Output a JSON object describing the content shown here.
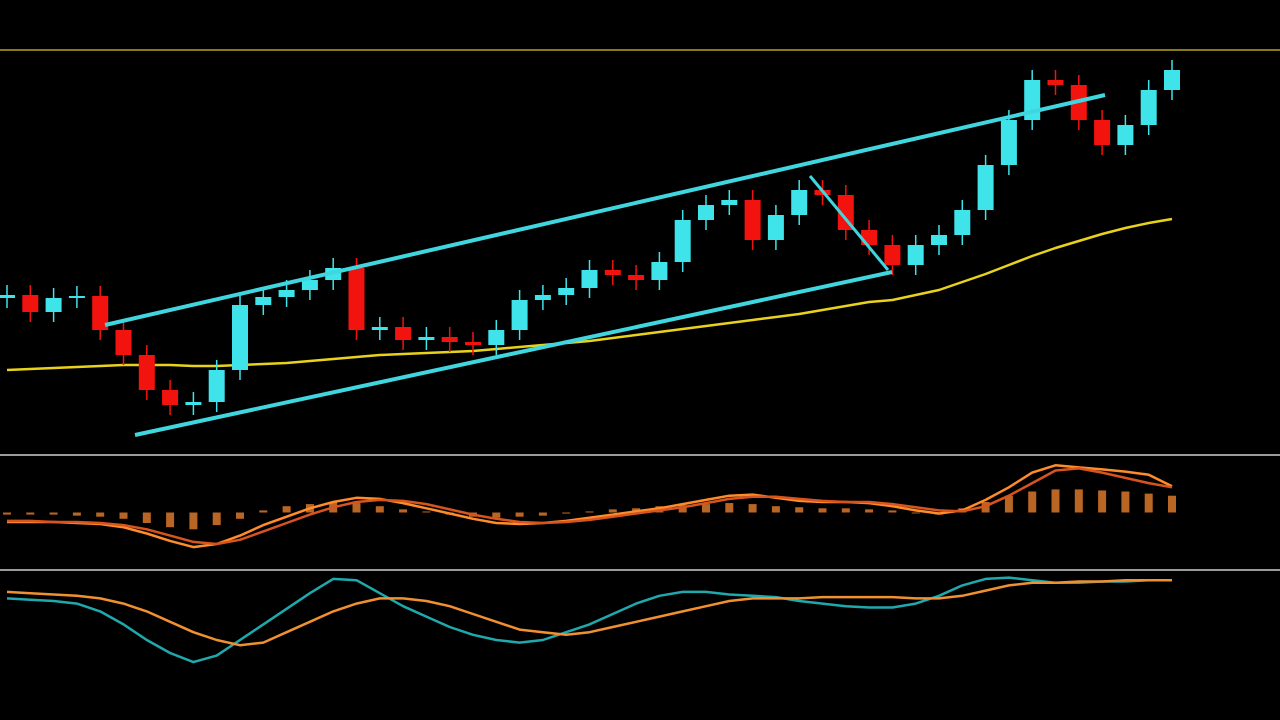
{
  "chart_data": [
    {
      "type": "candlestick",
      "categories": [
        null,
        null,
        null,
        null,
        null,
        null,
        null,
        null,
        null,
        null,
        null,
        null,
        null,
        null,
        null,
        null,
        null,
        null,
        null,
        null,
        null,
        null,
        null,
        null,
        null,
        null,
        null,
        null,
        null,
        null,
        null,
        null,
        null,
        null,
        null,
        null,
        null,
        null,
        null,
        null,
        null,
        null,
        null,
        null,
        null,
        null,
        null,
        null,
        null,
        null,
        null
      ],
      "open": [
        157,
        160,
        143,
        157,
        159,
        125,
        100,
        65,
        50,
        53,
        85,
        150,
        158,
        165,
        175,
        187,
        125,
        128,
        115,
        118,
        113,
        110,
        125,
        155,
        160,
        167,
        185,
        180,
        175,
        193,
        235,
        250,
        255,
        215,
        240,
        265,
        260,
        225,
        210,
        190,
        210,
        220,
        245,
        290,
        335,
        375,
        370,
        335,
        310,
        330,
        365
      ],
      "high": [
        170,
        170,
        167,
        169,
        169,
        135,
        110,
        75,
        63,
        95,
        160,
        168,
        175,
        185,
        197,
        197,
        138,
        138,
        128,
        128,
        123,
        135,
        165,
        170,
        177,
        195,
        195,
        190,
        203,
        245,
        260,
        265,
        265,
        250,
        275,
        275,
        270,
        235,
        220,
        220,
        230,
        255,
        300,
        345,
        385,
        385,
        380,
        345,
        340,
        375,
        395
      ],
      "low": [
        147,
        133,
        133,
        147,
        115,
        90,
        55,
        40,
        40,
        43,
        75,
        140,
        148,
        155,
        165,
        115,
        115,
        105,
        105,
        103,
        100,
        100,
        115,
        145,
        150,
        157,
        170,
        165,
        165,
        183,
        225,
        240,
        205,
        205,
        230,
        250,
        215,
        200,
        180,
        180,
        200,
        210,
        235,
        280,
        325,
        360,
        325,
        300,
        300,
        320,
        355
      ],
      "close": [
        160,
        143,
        157,
        159,
        125,
        100,
        65,
        50,
        53,
        85,
        150,
        158,
        165,
        175,
        187,
        125,
        128,
        115,
        118,
        113,
        110,
        125,
        155,
        160,
        167,
        185,
        180,
        175,
        193,
        235,
        250,
        255,
        215,
        240,
        265,
        260,
        225,
        210,
        190,
        210,
        220,
        245,
        290,
        335,
        375,
        370,
        335,
        310,
        330,
        365,
        385
      ],
      "up_color": "#3fe3ea",
      "down_color": "#f2130f",
      "series": [
        {
          "color": "#e8d21c",
          "values": [
            85,
            86,
            87,
            88,
            89,
            90,
            90,
            90,
            89,
            89,
            90,
            91,
            92,
            94,
            96,
            98,
            100,
            101,
            102,
            103,
            104,
            106,
            108,
            110,
            112,
            114,
            117,
            120,
            123,
            126,
            129,
            132,
            135,
            138,
            141,
            145,
            149,
            153,
            155,
            160,
            165,
            173,
            181,
            190,
            199,
            207,
            214,
            221,
            227,
            232,
            236
          ]
        }
      ],
      "ylim": [
        0,
        410
      ]
    },
    {
      "type": "macd",
      "ylim": [
        -50,
        50
      ],
      "series": [
        {
          "type": "bar",
          "color": "#d9772a",
          "values": [
            -2,
            -2,
            -2,
            -3,
            -4,
            -6,
            -10,
            -14,
            -16,
            -12,
            -6,
            2,
            6,
            8,
            10,
            9,
            6,
            3,
            1,
            -2,
            -4,
            -5,
            -4,
            -3,
            -1,
            1,
            3,
            4,
            6,
            7,
            8,
            9,
            8,
            6,
            5,
            4,
            4,
            3,
            2,
            0,
            -2,
            4,
            10,
            16,
            20,
            22,
            22,
            21,
            20,
            18,
            16
          ]
        },
        {
          "type": "line",
          "color": "#ff8c2a",
          "values": [
            -9,
            -9,
            -9,
            -10,
            -11,
            -14,
            -20,
            -27,
            -33,
            -30,
            -22,
            -12,
            -4,
            4,
            10,
            14,
            13,
            9,
            4,
            -1,
            -6,
            -10,
            -11,
            -10,
            -8,
            -5,
            -2,
            1,
            4,
            8,
            12,
            16,
            17,
            14,
            11,
            10,
            10,
            9,
            6,
            2,
            -1,
            2,
            12,
            24,
            38,
            45,
            43,
            41,
            39,
            36,
            25
          ]
        },
        {
          "type": "line",
          "color": "#d8541e",
          "values": [
            -8,
            -8,
            -9,
            -9,
            -10,
            -12,
            -16,
            -22,
            -28,
            -30,
            -26,
            -18,
            -10,
            -2,
            5,
            10,
            12,
            11,
            8,
            3,
            -2,
            -6,
            -9,
            -10,
            -9,
            -7,
            -4,
            -1,
            2,
            5,
            9,
            13,
            15,
            15,
            13,
            11,
            10,
            10,
            8,
            5,
            2,
            1,
            6,
            16,
            28,
            40,
            42,
            38,
            33,
            28,
            24
          ]
        }
      ]
    },
    {
      "type": "oscillator",
      "ylim": [
        0,
        100
      ],
      "series": [
        {
          "type": "line",
          "color": "#1fa9ad",
          "values": [
            82,
            81,
            80,
            78,
            72,
            62,
            50,
            40,
            33,
            38,
            50,
            62,
            74,
            86,
            97,
            96,
            86,
            76,
            68,
            60,
            54,
            50,
            48,
            50,
            56,
            62,
            70,
            78,
            84,
            87,
            87,
            85,
            84,
            83,
            80,
            78,
            76,
            75,
            75,
            78,
            84,
            92,
            97,
            98,
            96,
            94,
            94,
            95,
            95,
            96,
            96
          ]
        },
        {
          "type": "line",
          "color": "#f09030",
          "values": [
            87,
            86,
            85,
            84,
            82,
            78,
            72,
            64,
            56,
            50,
            46,
            48,
            56,
            64,
            72,
            78,
            82,
            82,
            80,
            76,
            70,
            64,
            58,
            56,
            54,
            56,
            60,
            64,
            68,
            72,
            76,
            80,
            82,
            82,
            82,
            83,
            83,
            83,
            83,
            82,
            82,
            84,
            88,
            92,
            94,
            94,
            95,
            95,
            96,
            96,
            96
          ]
        }
      ]
    }
  ]
}
